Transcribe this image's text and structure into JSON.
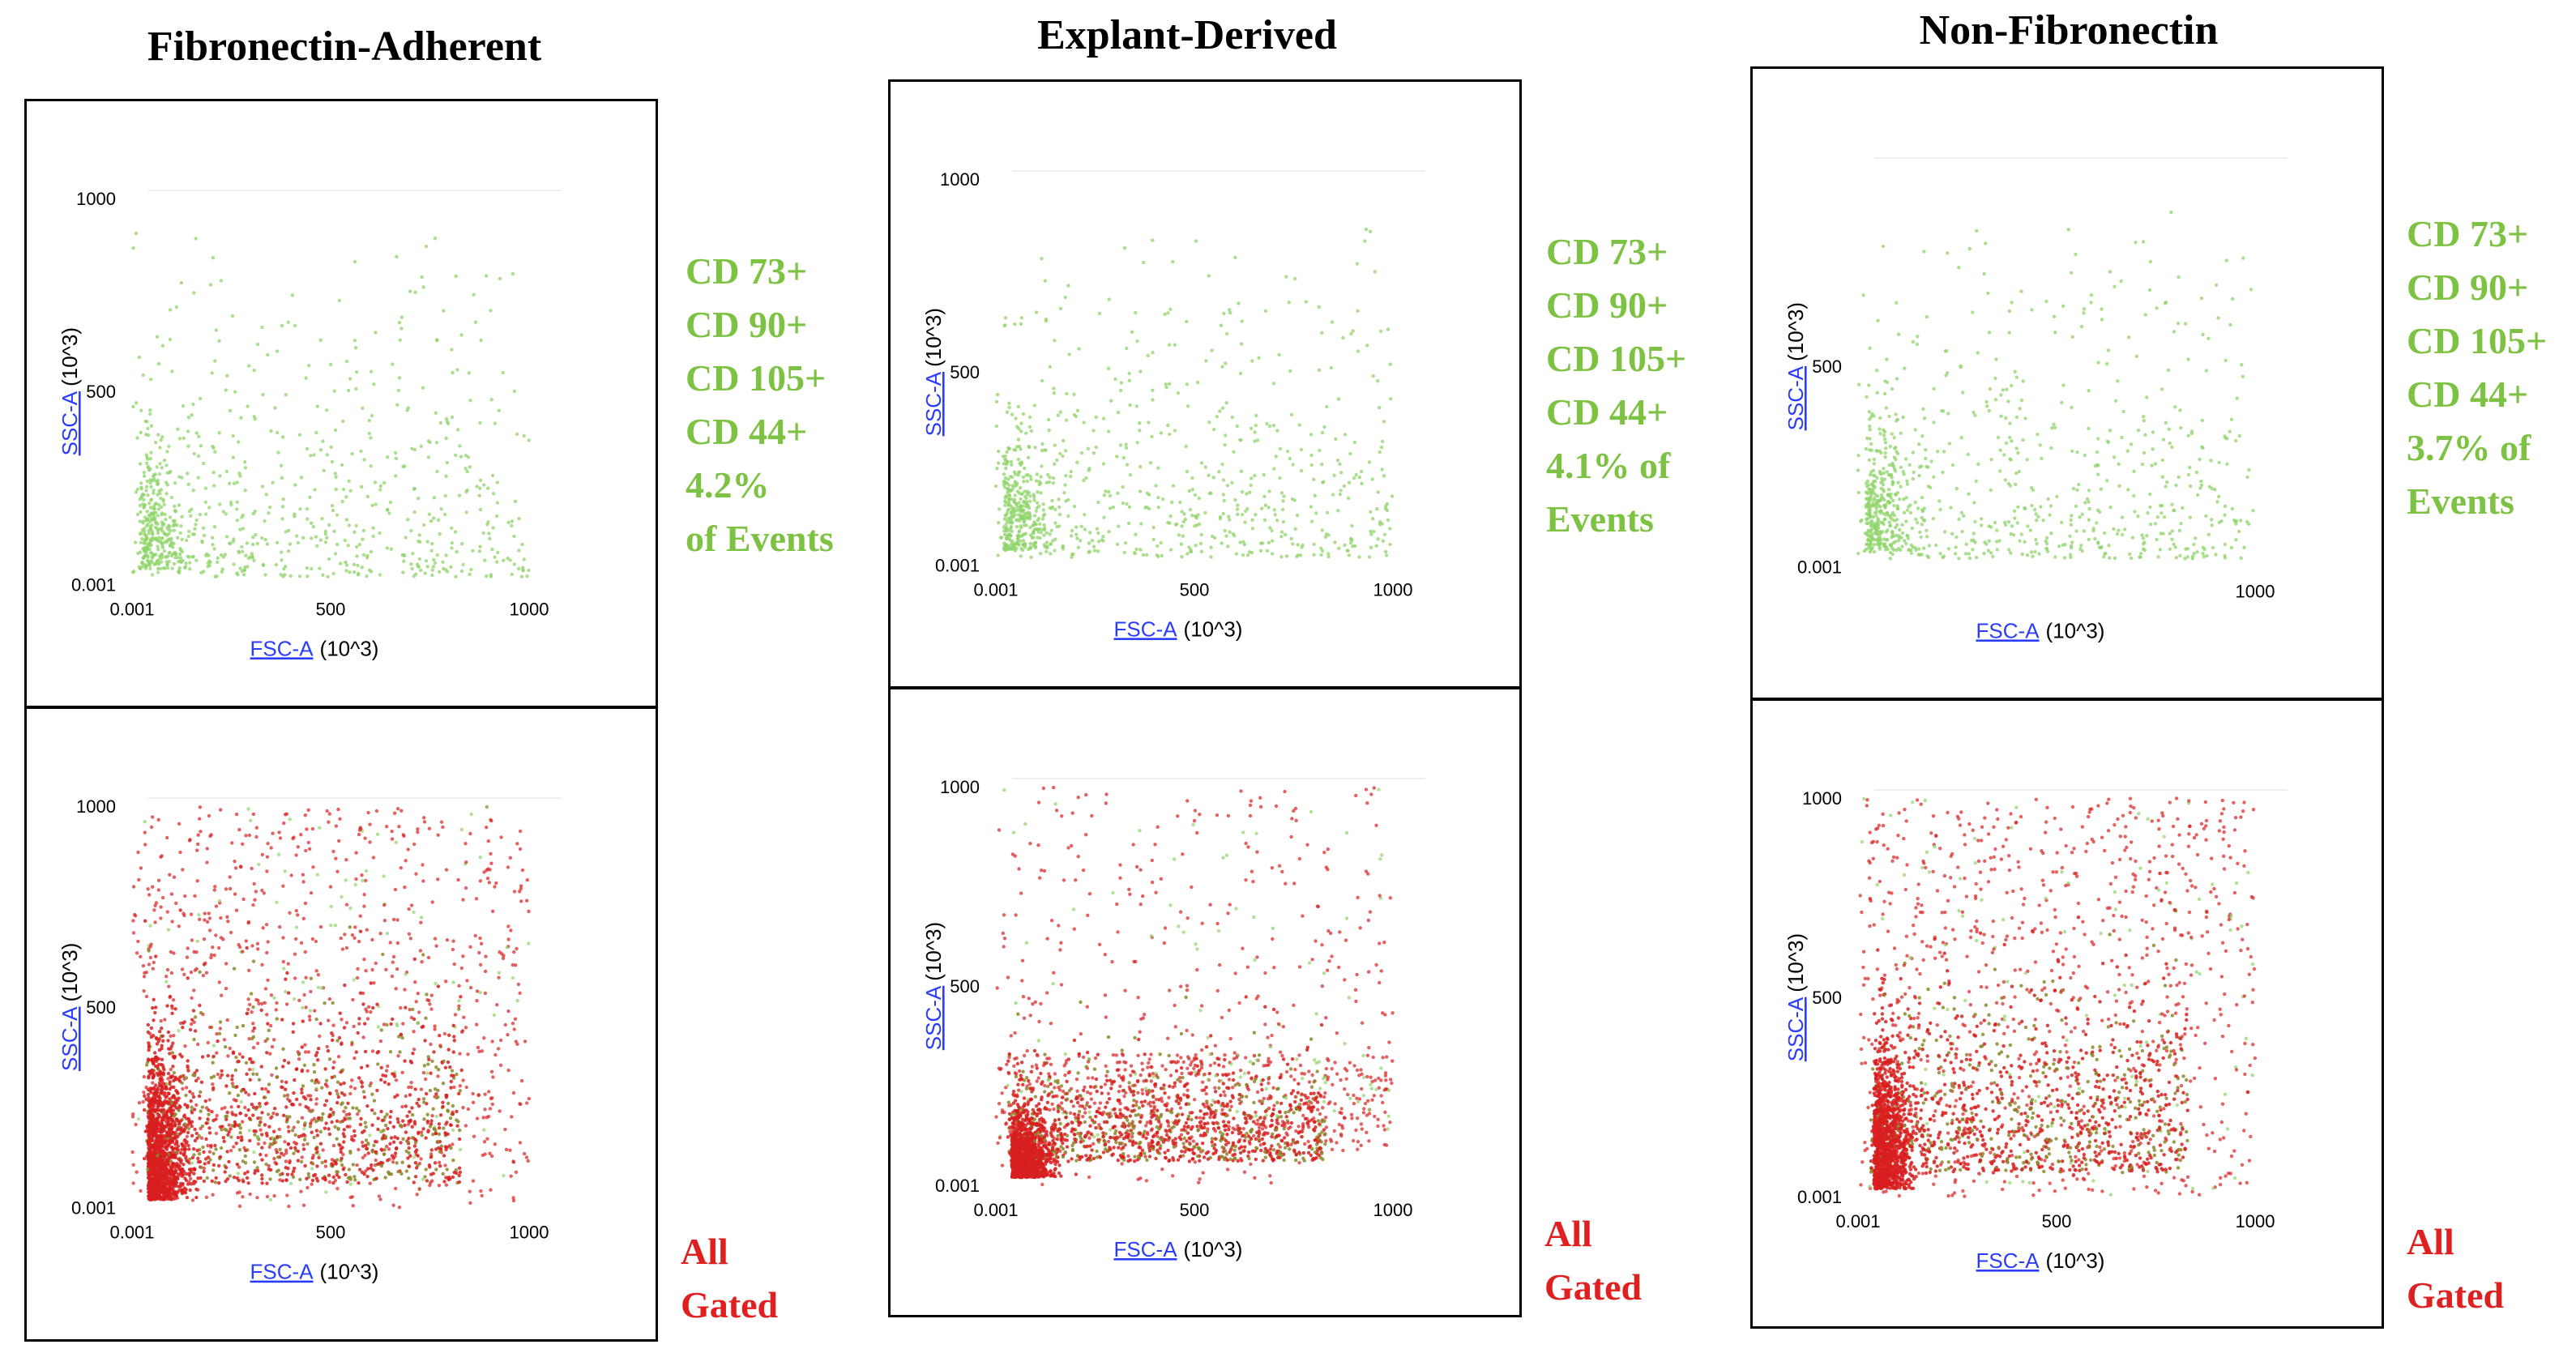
{
  "colors": {
    "marker_positive": "#7dc242",
    "all_gated_red": "#e02020",
    "dot_green": "#8fd46a",
    "dot_red": "#d81f1f",
    "dot_olive": "#8a8a2a",
    "axis_link": "#2a3cff"
  },
  "columns": [
    {
      "title": "Fibronectin-Adherent",
      "marker_lines": [
        "CD 73+",
        "CD 90+",
        "CD 105+",
        "CD 44+",
        "4.2%",
        "of Events"
      ],
      "gated_lines": [
        "All",
        "Gated"
      ],
      "top_plot": {
        "x_ticks": [
          "0.001",
          "500",
          "1000"
        ],
        "y_ticks": [
          "0.001",
          "500",
          "1000"
        ],
        "x_label_link": "FSC-A",
        "x_label_unit": "(10^3)",
        "y_label_link": "SSC-A",
        "y_label_unit": "(10^3)"
      },
      "bottom_plot": {
        "x_ticks": [
          "0.001",
          "500",
          "1000"
        ],
        "y_ticks": [
          "0.001",
          "500",
          "1000"
        ],
        "x_label_link": "FSC-A",
        "x_label_unit": "(10^3)",
        "y_label_link": "SSC-A",
        "y_label_unit": "(10^3)"
      }
    },
    {
      "title": "Explant-Derived",
      "marker_lines": [
        "CD 73+",
        "CD 90+",
        "CD 105+",
        "CD 44+",
        "4.1% of",
        "Events"
      ],
      "gated_lines": [
        "All",
        "Gated"
      ],
      "top_plot": {
        "x_ticks": [
          "0.001",
          "500",
          "1000"
        ],
        "y_ticks": [
          "0.001",
          "500",
          "1000"
        ],
        "x_label_link": "FSC-A",
        "x_label_unit": "(10^3)",
        "y_label_link": "SSC-A",
        "y_label_unit": "(10^3)"
      },
      "bottom_plot": {
        "x_ticks": [
          "0.001",
          "500",
          "1000"
        ],
        "y_ticks": [
          "0.001",
          "500",
          "1000"
        ],
        "x_label_link": "FSC-A",
        "x_label_unit": "(10^3)",
        "y_label_link": "SSC-A",
        "y_label_unit": "(10^3)"
      }
    },
    {
      "title": "Non-Fibronectin",
      "marker_lines": [
        "CD 73+",
        "CD 90+",
        "CD 105+",
        "CD 44+",
        "3.7% of",
        "Events"
      ],
      "gated_lines": [
        "All",
        "Gated"
      ],
      "top_plot": {
        "x_ticks": [
          "",
          "",
          "1000"
        ],
        "y_ticks": [
          "0.001",
          "500",
          ""
        ],
        "x_label_link": "FSC-A",
        "x_label_unit": "(10^3)",
        "y_label_link": "SSC-A",
        "y_label_unit": "(10^3)"
      },
      "bottom_plot": {
        "x_ticks": [
          "0.001",
          "500",
          "1000"
        ],
        "y_ticks": [
          "0.001",
          "500",
          "1000"
        ],
        "x_label_link": "FSC-A",
        "x_label_unit": "(10^3)",
        "y_label_link": "SSC-A",
        "y_label_unit": "(10^3)"
      }
    }
  ],
  "chart_data": [
    {
      "type": "scatter",
      "panel": "Fibronectin-Adherent / CD73+CD90+CD105+CD44+",
      "xlabel": "FSC-A (10^3)",
      "ylabel": "SSC-A (10^3)",
      "xlim": [
        0.001,
        1000
      ],
      "ylim": [
        0.001,
        1000
      ],
      "series": [
        {
          "name": "CD 73+ CD 90+ CD 105+ CD 44+",
          "percent_of_events": 4.2,
          "color": "#8fd46a"
        }
      ],
      "annotation": "4.2% of Events"
    },
    {
      "type": "scatter",
      "panel": "Fibronectin-Adherent / All Gated",
      "xlabel": "FSC-A (10^3)",
      "ylabel": "SSC-A (10^3)",
      "xlim": [
        0.001,
        1000
      ],
      "ylim": [
        0.001,
        1000
      ],
      "series": [
        {
          "name": "All Gated",
          "color": "#d81f1f"
        }
      ]
    },
    {
      "type": "scatter",
      "panel": "Explant-Derived / CD73+CD90+CD105+CD44+",
      "xlabel": "FSC-A (10^3)",
      "ylabel": "SSC-A (10^3)",
      "xlim": [
        0.001,
        1000
      ],
      "ylim": [
        0.001,
        1000
      ],
      "series": [
        {
          "name": "CD 73+ CD 90+ CD 105+ CD 44+",
          "percent_of_events": 4.1,
          "color": "#8fd46a"
        }
      ],
      "annotation": "4.1% of Events"
    },
    {
      "type": "scatter",
      "panel": "Explant-Derived / All Gated",
      "xlabel": "FSC-A (10^3)",
      "ylabel": "SSC-A (10^3)",
      "xlim": [
        0.001,
        1000
      ],
      "ylim": [
        0.001,
        1000
      ],
      "series": [
        {
          "name": "All Gated",
          "color": "#d81f1f"
        }
      ]
    },
    {
      "type": "scatter",
      "panel": "Non-Fibronectin / CD73+CD90+CD105+CD44+",
      "xlabel": "FSC-A (10^3)",
      "ylabel": "SSC-A (10^3)",
      "xlim": [
        0.001,
        1000
      ],
      "ylim": [
        0.001,
        1000
      ],
      "series": [
        {
          "name": "CD 73+ CD 90+ CD 105+ CD 44+",
          "percent_of_events": 3.7,
          "color": "#8fd46a"
        }
      ],
      "annotation": "3.7% of Events"
    },
    {
      "type": "scatter",
      "panel": "Non-Fibronectin / All Gated",
      "xlabel": "FSC-A (10^3)",
      "ylabel": "SSC-A (10^3)",
      "xlim": [
        0.001,
        1000
      ],
      "ylim": [
        0.001,
        1000
      ],
      "series": [
        {
          "name": "All Gated",
          "color": "#d81f1f"
        }
      ]
    }
  ]
}
